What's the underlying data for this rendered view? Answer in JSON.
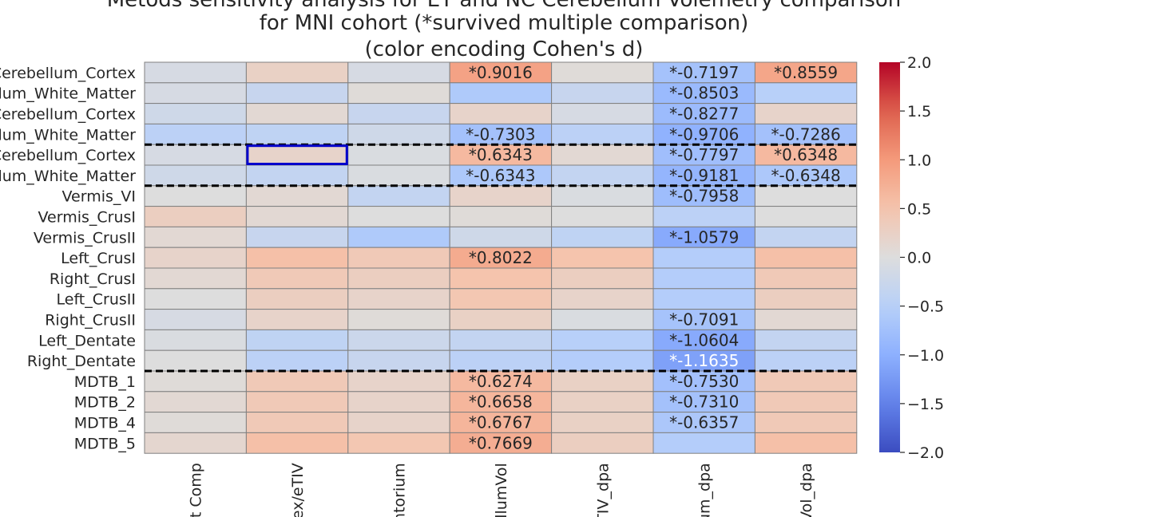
{
  "chart_data": {
    "type": "heatmap",
    "title_lines": [
      "Metods sensitivity analysis for ET and NC Cerebellum Volemetry comparison",
      "for MNI cohort (*survived multiple comparison)",
      "(color encoding Cohen's d)"
    ],
    "rows": [
      "Left_Cerebellum_Cortex",
      "Left_Cerebellum_White_Matter",
      "Right_Cerebellum_Cortex",
      "Right_Cerebellum_White_Matter",
      "Cerebellum_Cortex",
      "Cerebellum_White_Matter",
      "Vermis_VI",
      "Vermis_CrusI",
      "Vermis_CrusII",
      "Left_CrusI",
      "Right_CrusI",
      "Left_CrusII",
      "Right_CrusII",
      "Left_Dentate",
      "Right_Dentate",
      "MDTB_1",
      "MDTB_2",
      "MDTB_4",
      "MDTB_5"
    ],
    "columns": [
      "t Comp",
      "ex/eTIV",
      "ntorium",
      "llumVol",
      "TIV_dpa",
      "um_dpa",
      "Vol_dpa"
    ],
    "values": [
      [
        -0.1,
        0.25,
        -0.1,
        0.9,
        0.05,
        -0.72,
        0.86
      ],
      [
        -0.1,
        -0.3,
        0.05,
        -0.6,
        -0.3,
        -0.85,
        -0.5
      ],
      [
        -0.2,
        0.1,
        -0.3,
        0.2,
        -0.1,
        -0.83,
        0.2
      ],
      [
        -0.45,
        -0.4,
        -0.2,
        -0.73,
        -0.45,
        -0.97,
        -0.73
      ],
      [
        -0.1,
        0.2,
        -0.05,
        0.63,
        0.1,
        -0.78,
        0.63
      ],
      [
        -0.2,
        -0.35,
        -0.05,
        -0.63,
        -0.35,
        -0.92,
        -0.63
      ],
      [
        0.0,
        0.1,
        -0.35,
        0.2,
        -0.05,
        -0.8,
        0.0
      ],
      [
        0.3,
        0.1,
        0.0,
        0.05,
        0.0,
        -0.45,
        0.0
      ],
      [
        0.1,
        -0.3,
        -0.6,
        -0.2,
        -0.4,
        -1.06,
        -0.35
      ],
      [
        0.2,
        0.55,
        0.4,
        0.8,
        0.5,
        -0.55,
        0.55
      ],
      [
        0.1,
        0.4,
        0.3,
        0.5,
        0.3,
        -0.55,
        0.4
      ],
      [
        0.0,
        0.3,
        0.2,
        0.45,
        0.2,
        -0.55,
        0.3
      ],
      [
        -0.1,
        0.2,
        0.05,
        0.25,
        -0.05,
        -0.71,
        0.1
      ],
      [
        -0.05,
        -0.4,
        -0.25,
        -0.35,
        -0.5,
        -1.06,
        -0.35
      ],
      [
        0.0,
        -0.45,
        -0.3,
        -0.45,
        -0.55,
        -1.16,
        -0.45
      ],
      [
        0.05,
        0.4,
        0.2,
        0.63,
        0.25,
        -0.75,
        0.4
      ],
      [
        0.1,
        0.4,
        0.2,
        0.67,
        0.25,
        -0.73,
        0.4
      ],
      [
        0.05,
        0.4,
        0.2,
        0.68,
        0.25,
        -0.64,
        0.4
      ],
      [
        0.15,
        0.55,
        0.45,
        0.77,
        0.3,
        -0.55,
        0.55
      ]
    ],
    "annotations": [
      [
        "",
        "",
        "",
        "*0.9016",
        "",
        "*-0.7197",
        "*0.8559"
      ],
      [
        "",
        "",
        "",
        "",
        "",
        "*-0.8503",
        ""
      ],
      [
        "",
        "",
        "",
        "",
        "",
        "*-0.8277",
        ""
      ],
      [
        "",
        "",
        "",
        "*-0.7303",
        "",
        "*-0.9706",
        "*-0.7286"
      ],
      [
        "",
        "",
        "",
        "*0.6343",
        "",
        "*-0.7797",
        "*0.6348"
      ],
      [
        "",
        "",
        "",
        "*-0.6343",
        "",
        "*-0.9181",
        "*-0.6348"
      ],
      [
        "",
        "",
        "",
        "",
        "",
        "*-0.7958",
        ""
      ],
      [
        "",
        "",
        "",
        "",
        "",
        "",
        ""
      ],
      [
        "",
        "",
        "",
        "",
        "",
        "*-1.0579",
        ""
      ],
      [
        "",
        "",
        "",
        "*0.8022",
        "",
        "",
        ""
      ],
      [
        "",
        "",
        "",
        "",
        "",
        "",
        ""
      ],
      [
        "",
        "",
        "",
        "",
        "",
        "",
        ""
      ],
      [
        "",
        "",
        "",
        "",
        "",
        "*-0.7091",
        ""
      ],
      [
        "",
        "",
        "",
        "",
        "",
        "*-1.0604",
        ""
      ],
      [
        "",
        "",
        "",
        "",
        "",
        "*-1.1635",
        ""
      ],
      [
        "",
        "",
        "",
        "*0.6274",
        "",
        "*-0.7530",
        ""
      ],
      [
        "",
        "",
        "",
        "*0.6658",
        "",
        "*-0.7310",
        ""
      ],
      [
        "",
        "",
        "",
        "*0.6767",
        "",
        "*-0.6357",
        ""
      ],
      [
        "",
        "",
        "",
        "*0.7669",
        "",
        "",
        ""
      ]
    ],
    "group_separators_after_rows": [
      3,
      5,
      14
    ],
    "highlighted_cell": {
      "row": 4,
      "col": 1,
      "color": "#0000cc"
    },
    "colormap": "coolwarm",
    "vmin": -2.0,
    "vmax": 2.0,
    "colorbar_ticks": [
      "2.0",
      "1.5",
      "1.0",
      "0.5",
      "0.0",
      "−0.5",
      "−1.0",
      "−1.5",
      "−2.0"
    ]
  }
}
